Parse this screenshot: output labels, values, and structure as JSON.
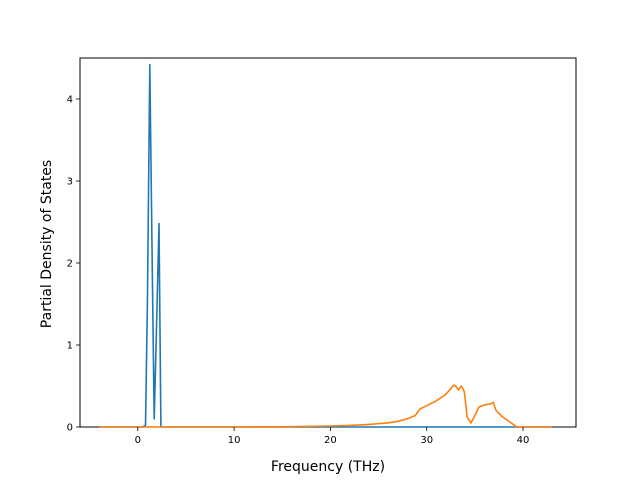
{
  "chart_data": {
    "type": "line",
    "title": "",
    "xlabel": "Frequency (THz)",
    "ylabel": "Partial Density of States",
    "xlim": [
      -6.0,
      45.5
    ],
    "ylim": [
      0,
      4.5
    ],
    "xticks": [
      0,
      10,
      20,
      30,
      40
    ],
    "yticks": [
      0,
      1,
      2,
      3,
      4
    ],
    "grid": false,
    "legend": "none",
    "series": [
      {
        "color": "#1f77b4",
        "x": [
          -4.0,
          0.5,
          0.8,
          1.0,
          1.25,
          1.5,
          1.7,
          1.9,
          2.2,
          2.4,
          2.6,
          43.0
        ],
        "y": [
          0,
          0,
          0.02,
          1.5,
          4.42,
          2.0,
          0.1,
          1.0,
          2.48,
          0.0,
          0,
          0
        ]
      },
      {
        "color": "#ff7f0e",
        "x": [
          -4.0,
          10.0,
          15.0,
          20.0,
          22.0,
          24.0,
          26.0,
          27.0,
          28.0,
          28.8,
          29.3,
          30.0,
          31.0,
          32.0,
          32.5,
          32.8,
          33.0,
          33.3,
          33.6,
          33.9,
          34.2,
          34.6,
          35.0,
          35.4,
          36.0,
          36.6,
          36.9,
          37.2,
          37.8,
          38.4,
          39.0,
          39.3,
          40.0,
          43.0
        ],
        "y": [
          0,
          0,
          0.003,
          0.012,
          0.02,
          0.032,
          0.05,
          0.07,
          0.1,
          0.14,
          0.22,
          0.26,
          0.32,
          0.4,
          0.47,
          0.51,
          0.5,
          0.45,
          0.5,
          0.43,
          0.12,
          0.05,
          0.14,
          0.24,
          0.27,
          0.28,
          0.3,
          0.2,
          0.13,
          0.08,
          0.03,
          0.0,
          0,
          0
        ]
      }
    ]
  }
}
